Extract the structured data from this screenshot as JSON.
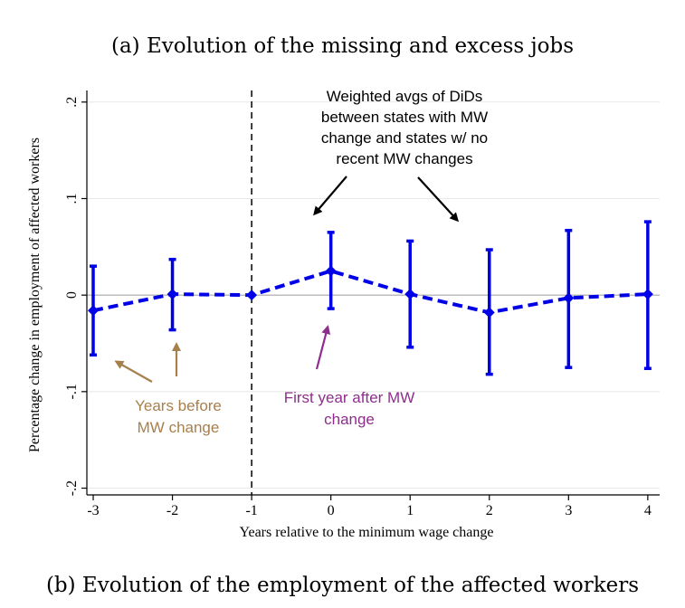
{
  "captions": {
    "top": "(a) Evolution of the missing and excess jobs",
    "bottom": "(b) Evolution of the employment of the affected workers"
  },
  "colors": {
    "series": "#0000e6",
    "brown": "#a77f4c",
    "purple": "#8e2e8c",
    "zero_line": "#a6a6a6",
    "grid": "#e8e8e8"
  },
  "chart_data": {
    "type": "line",
    "xlabel": "Years relative to the minimum wage change",
    "ylabel": "Percentage change in employment of affected workers",
    "xlim": [
      -3.08,
      4.15
    ],
    "ylim": [
      -0.207,
      0.212
    ],
    "x_ticks": [
      -3,
      -2,
      -1,
      0,
      1,
      2,
      3,
      4
    ],
    "x_tick_labels": [
      "-3",
      "-2",
      "-1",
      "0",
      "1",
      "2",
      "3",
      "4"
    ],
    "y_ticks": [
      -0.2,
      -0.1,
      0,
      0.1,
      0.2
    ],
    "y_tick_labels": [
      "-.2",
      "-.1",
      "0",
      ".1",
      ".2"
    ],
    "grid": true,
    "reference_lines": {
      "vertical_dashed_x": -1,
      "horizontal_y": 0
    },
    "series": [
      {
        "x": [
          -3,
          -2,
          -1,
          0,
          1,
          2,
          3,
          4
        ],
        "values": [
          -0.016,
          0.001,
          0.0,
          0.025,
          0.001,
          -0.018,
          -0.003,
          0.001
        ],
        "ci_low": [
          -0.062,
          -0.036,
          0.0,
          -0.014,
          -0.054,
          -0.082,
          -0.075,
          -0.076
        ],
        "ci_high": [
          0.03,
          0.037,
          0.0,
          0.065,
          0.056,
          0.047,
          0.067,
          0.076
        ]
      }
    ],
    "annotations": [
      {
        "lines": [
          "Weighted avgs of DiDs",
          "between states with MW",
          "change and states w/ no",
          "recent MW changes"
        ],
        "color": "black"
      },
      {
        "lines": [
          "Years before",
          "MW change"
        ],
        "color": "brown"
      },
      {
        "lines": [
          "First year after MW",
          "change"
        ],
        "color": "purple"
      }
    ]
  }
}
